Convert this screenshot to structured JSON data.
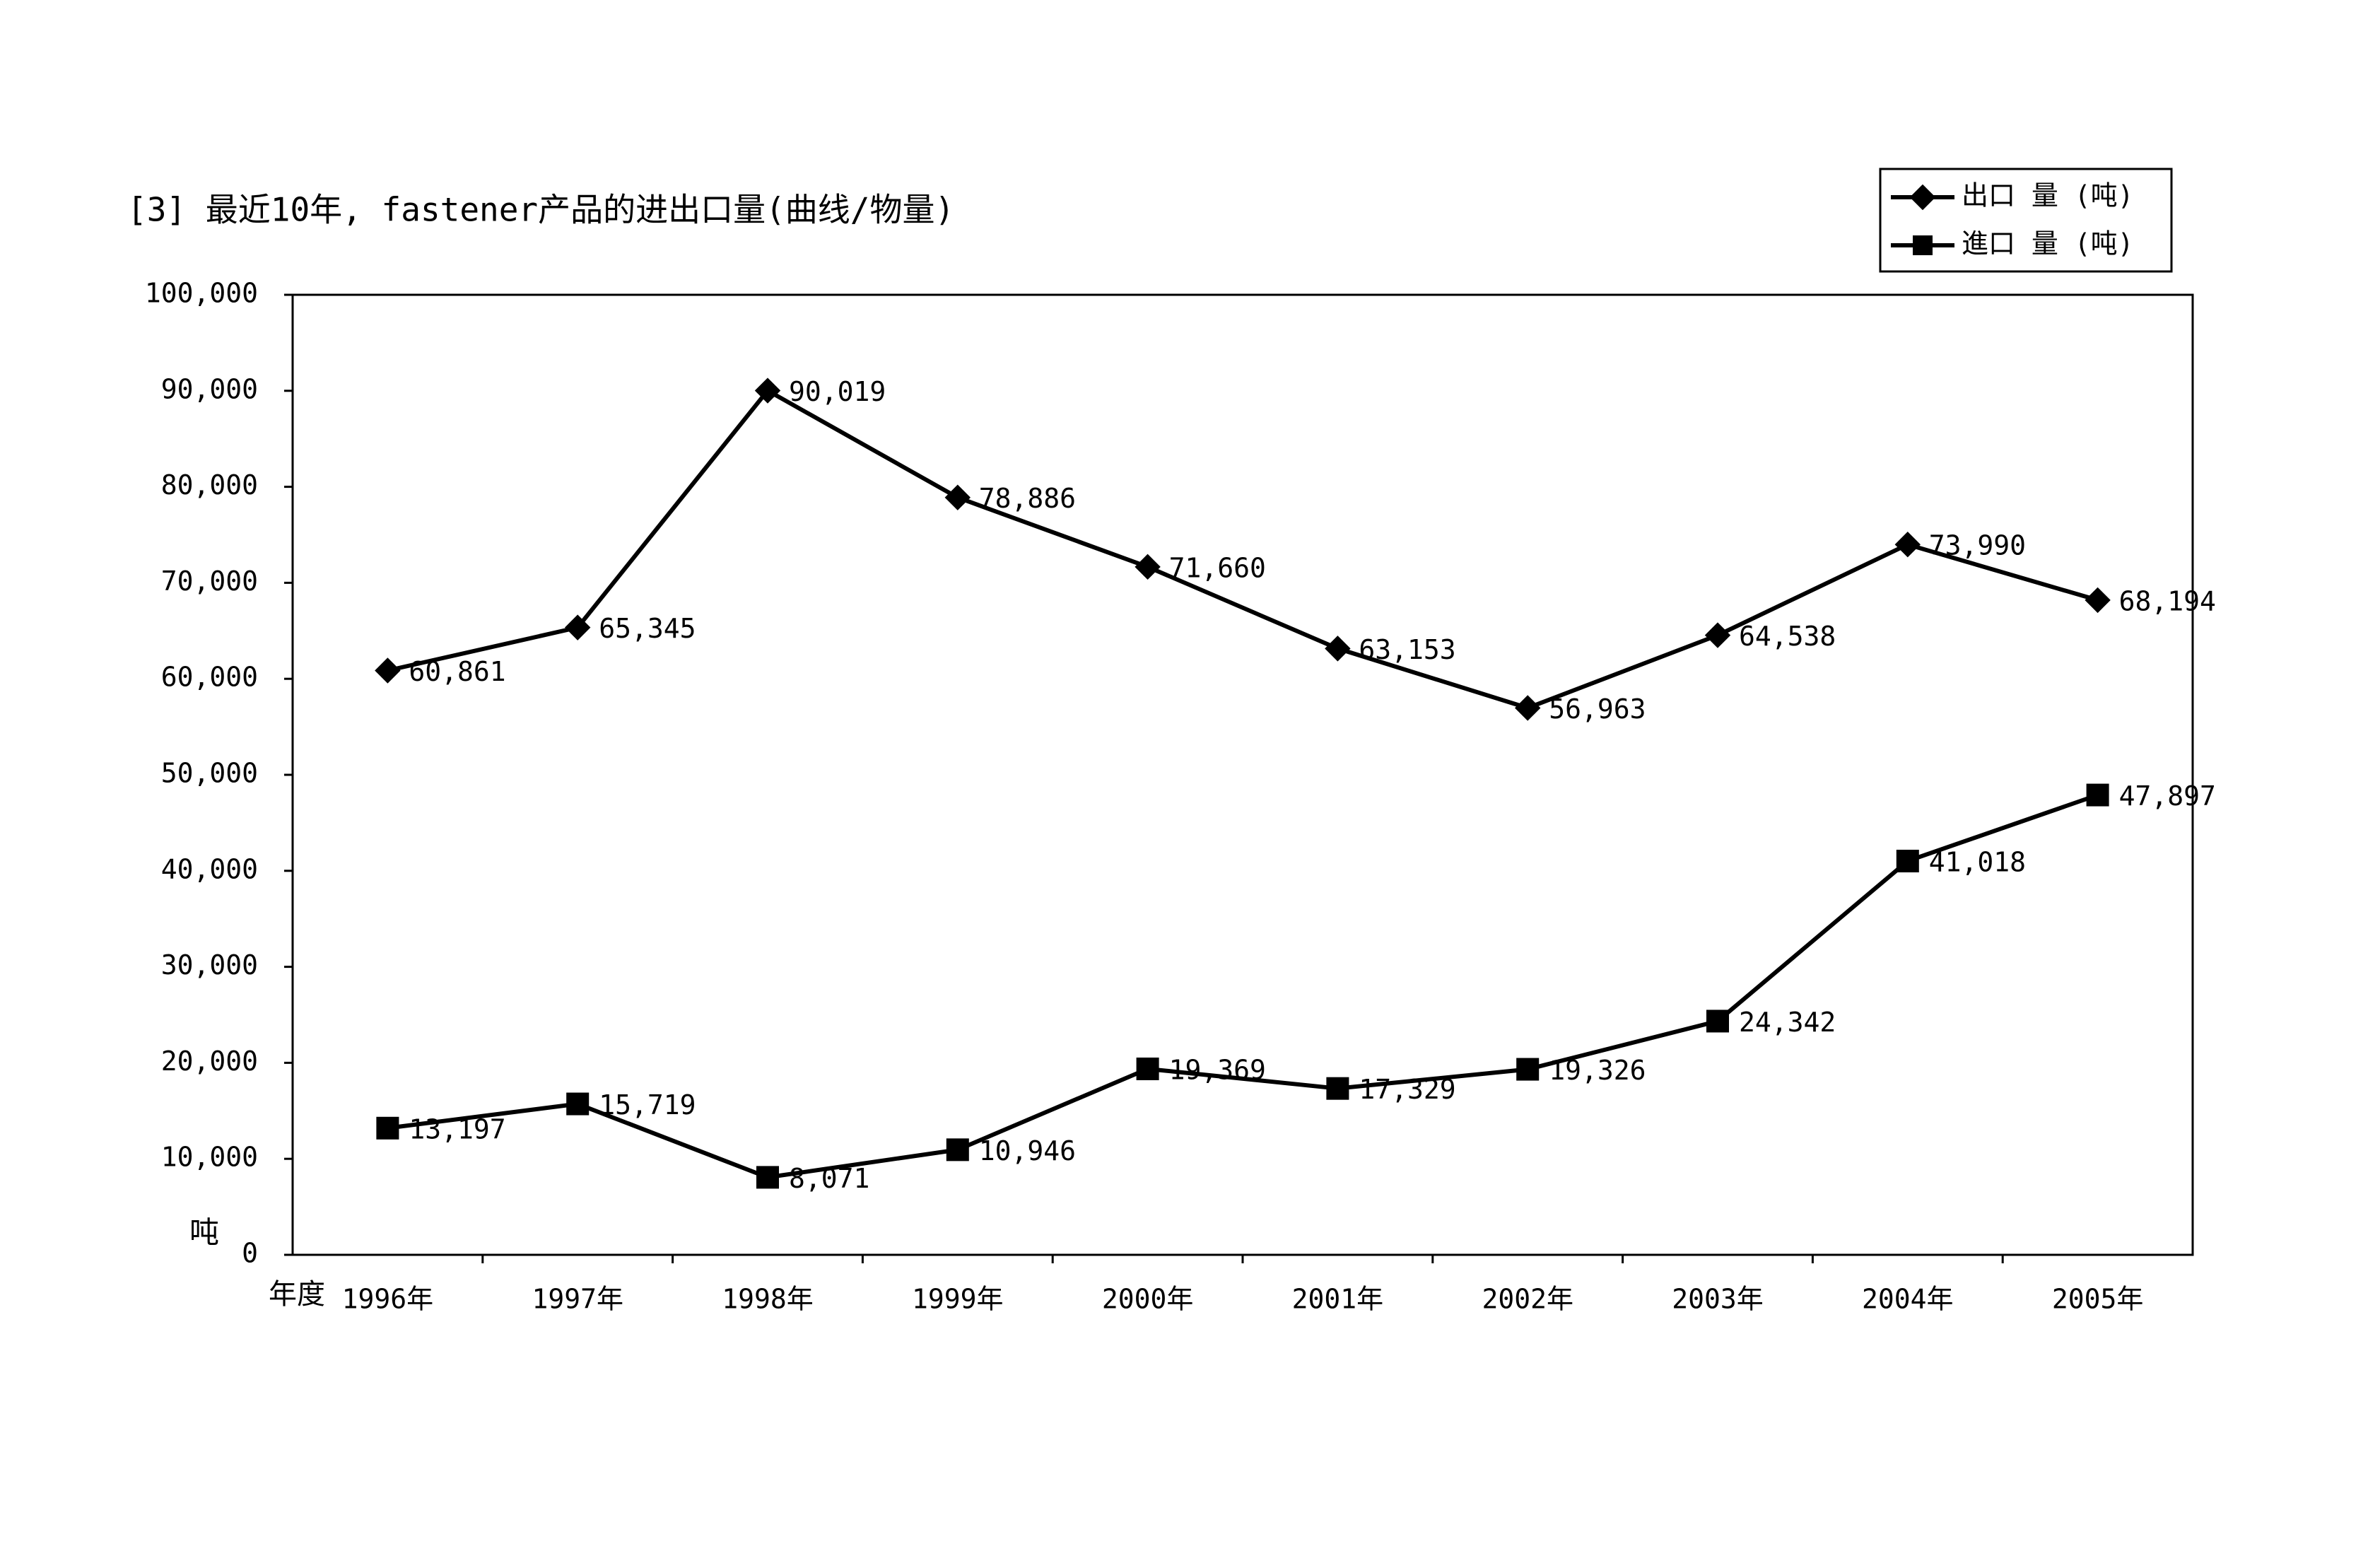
{
  "chart_data": {
    "type": "line",
    "title": "[3] 最近10年, fastener产品的进出口量(曲线/物量)",
    "y_label": "吨",
    "x_label": "年度",
    "categories": [
      "1996年",
      "1997年",
      "1998年",
      "1999年",
      "2000年",
      "2001年",
      "2002年",
      "2003年",
      "2004年",
      "2005年"
    ],
    "series": [
      {
        "name": "出口 量 (吨)",
        "color": "#000000",
        "marker": "diamond",
        "values": [
          60861,
          65345,
          90019,
          78886,
          71660,
          63153,
          56963,
          64538,
          73990,
          68194
        ],
        "value_labels": [
          "60,861",
          "65,345",
          "90,019",
          "78,886",
          "71,660",
          "63,153",
          "56,963",
          "64,538",
          "73,990",
          "68,194"
        ]
      },
      {
        "name": "進口 量 (吨)",
        "color": "#000000",
        "marker": "square",
        "values": [
          13197,
          15719,
          8071,
          10946,
          19369,
          17329,
          19326,
          24342,
          41018,
          47897
        ],
        "value_labels": [
          "13,197",
          "15,719",
          "8,071",
          "10,946",
          "19,369",
          "17,329",
          "19,326",
          "24,342",
          "41,018",
          "47,897"
        ]
      }
    ],
    "ylim": [
      0,
      100000
    ],
    "yticks": [
      0,
      {
        "value": 10000,
        "label": "10,000"
      },
      {
        "value": 20000,
        "label": "20,000"
      },
      {
        "value": 30000,
        "label": "30,000"
      },
      {
        "value": 40000,
        "label": "40,000"
      },
      {
        "value": 50000,
        "label": "50,000"
      },
      {
        "value": 60000,
        "label": "60,000"
      },
      {
        "value": 70000,
        "label": "70,000"
      },
      {
        "value": 80000,
        "label": "80,000"
      },
      {
        "value": 90000,
        "label": "90,000"
      },
      {
        "value": 100000,
        "label": "100,000"
      }
    ],
    "grid": false,
    "legend": "top-right"
  }
}
